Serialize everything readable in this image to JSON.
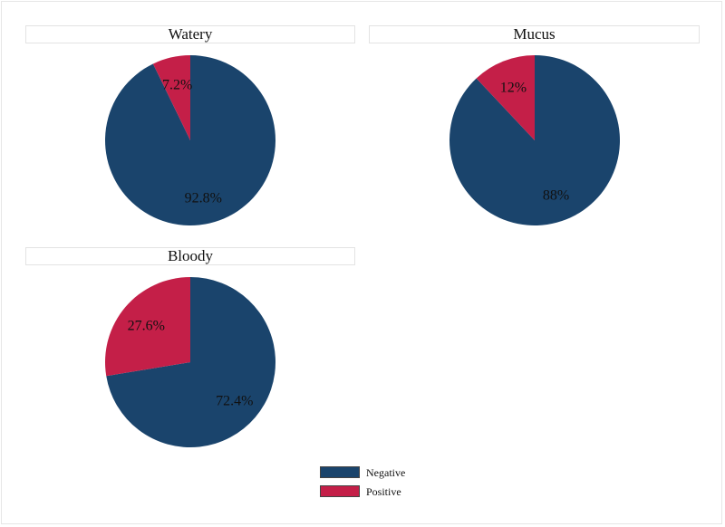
{
  "colors": {
    "negative": "#1a446c",
    "positive": "#c41f48"
  },
  "legend": {
    "negative_label": "Negative",
    "positive_label": "Positive"
  },
  "chart_data": [
    {
      "type": "pie",
      "title": "Watery",
      "slices": [
        {
          "name": "Negative",
          "value": 92.8,
          "label": "92.8%"
        },
        {
          "name": "Positive",
          "value": 7.2,
          "label": "7.2%"
        }
      ]
    },
    {
      "type": "pie",
      "title": "Mucus",
      "slices": [
        {
          "name": "Negative",
          "value": 88,
          "label": "88%"
        },
        {
          "name": "Positive",
          "value": 12,
          "label": "12%"
        }
      ]
    },
    {
      "type": "pie",
      "title": "Bloody",
      "slices": [
        {
          "name": "Negative",
          "value": 72.4,
          "label": "72.4%"
        },
        {
          "name": "Positive",
          "value": 27.6,
          "label": "27.6%"
        }
      ]
    }
  ]
}
